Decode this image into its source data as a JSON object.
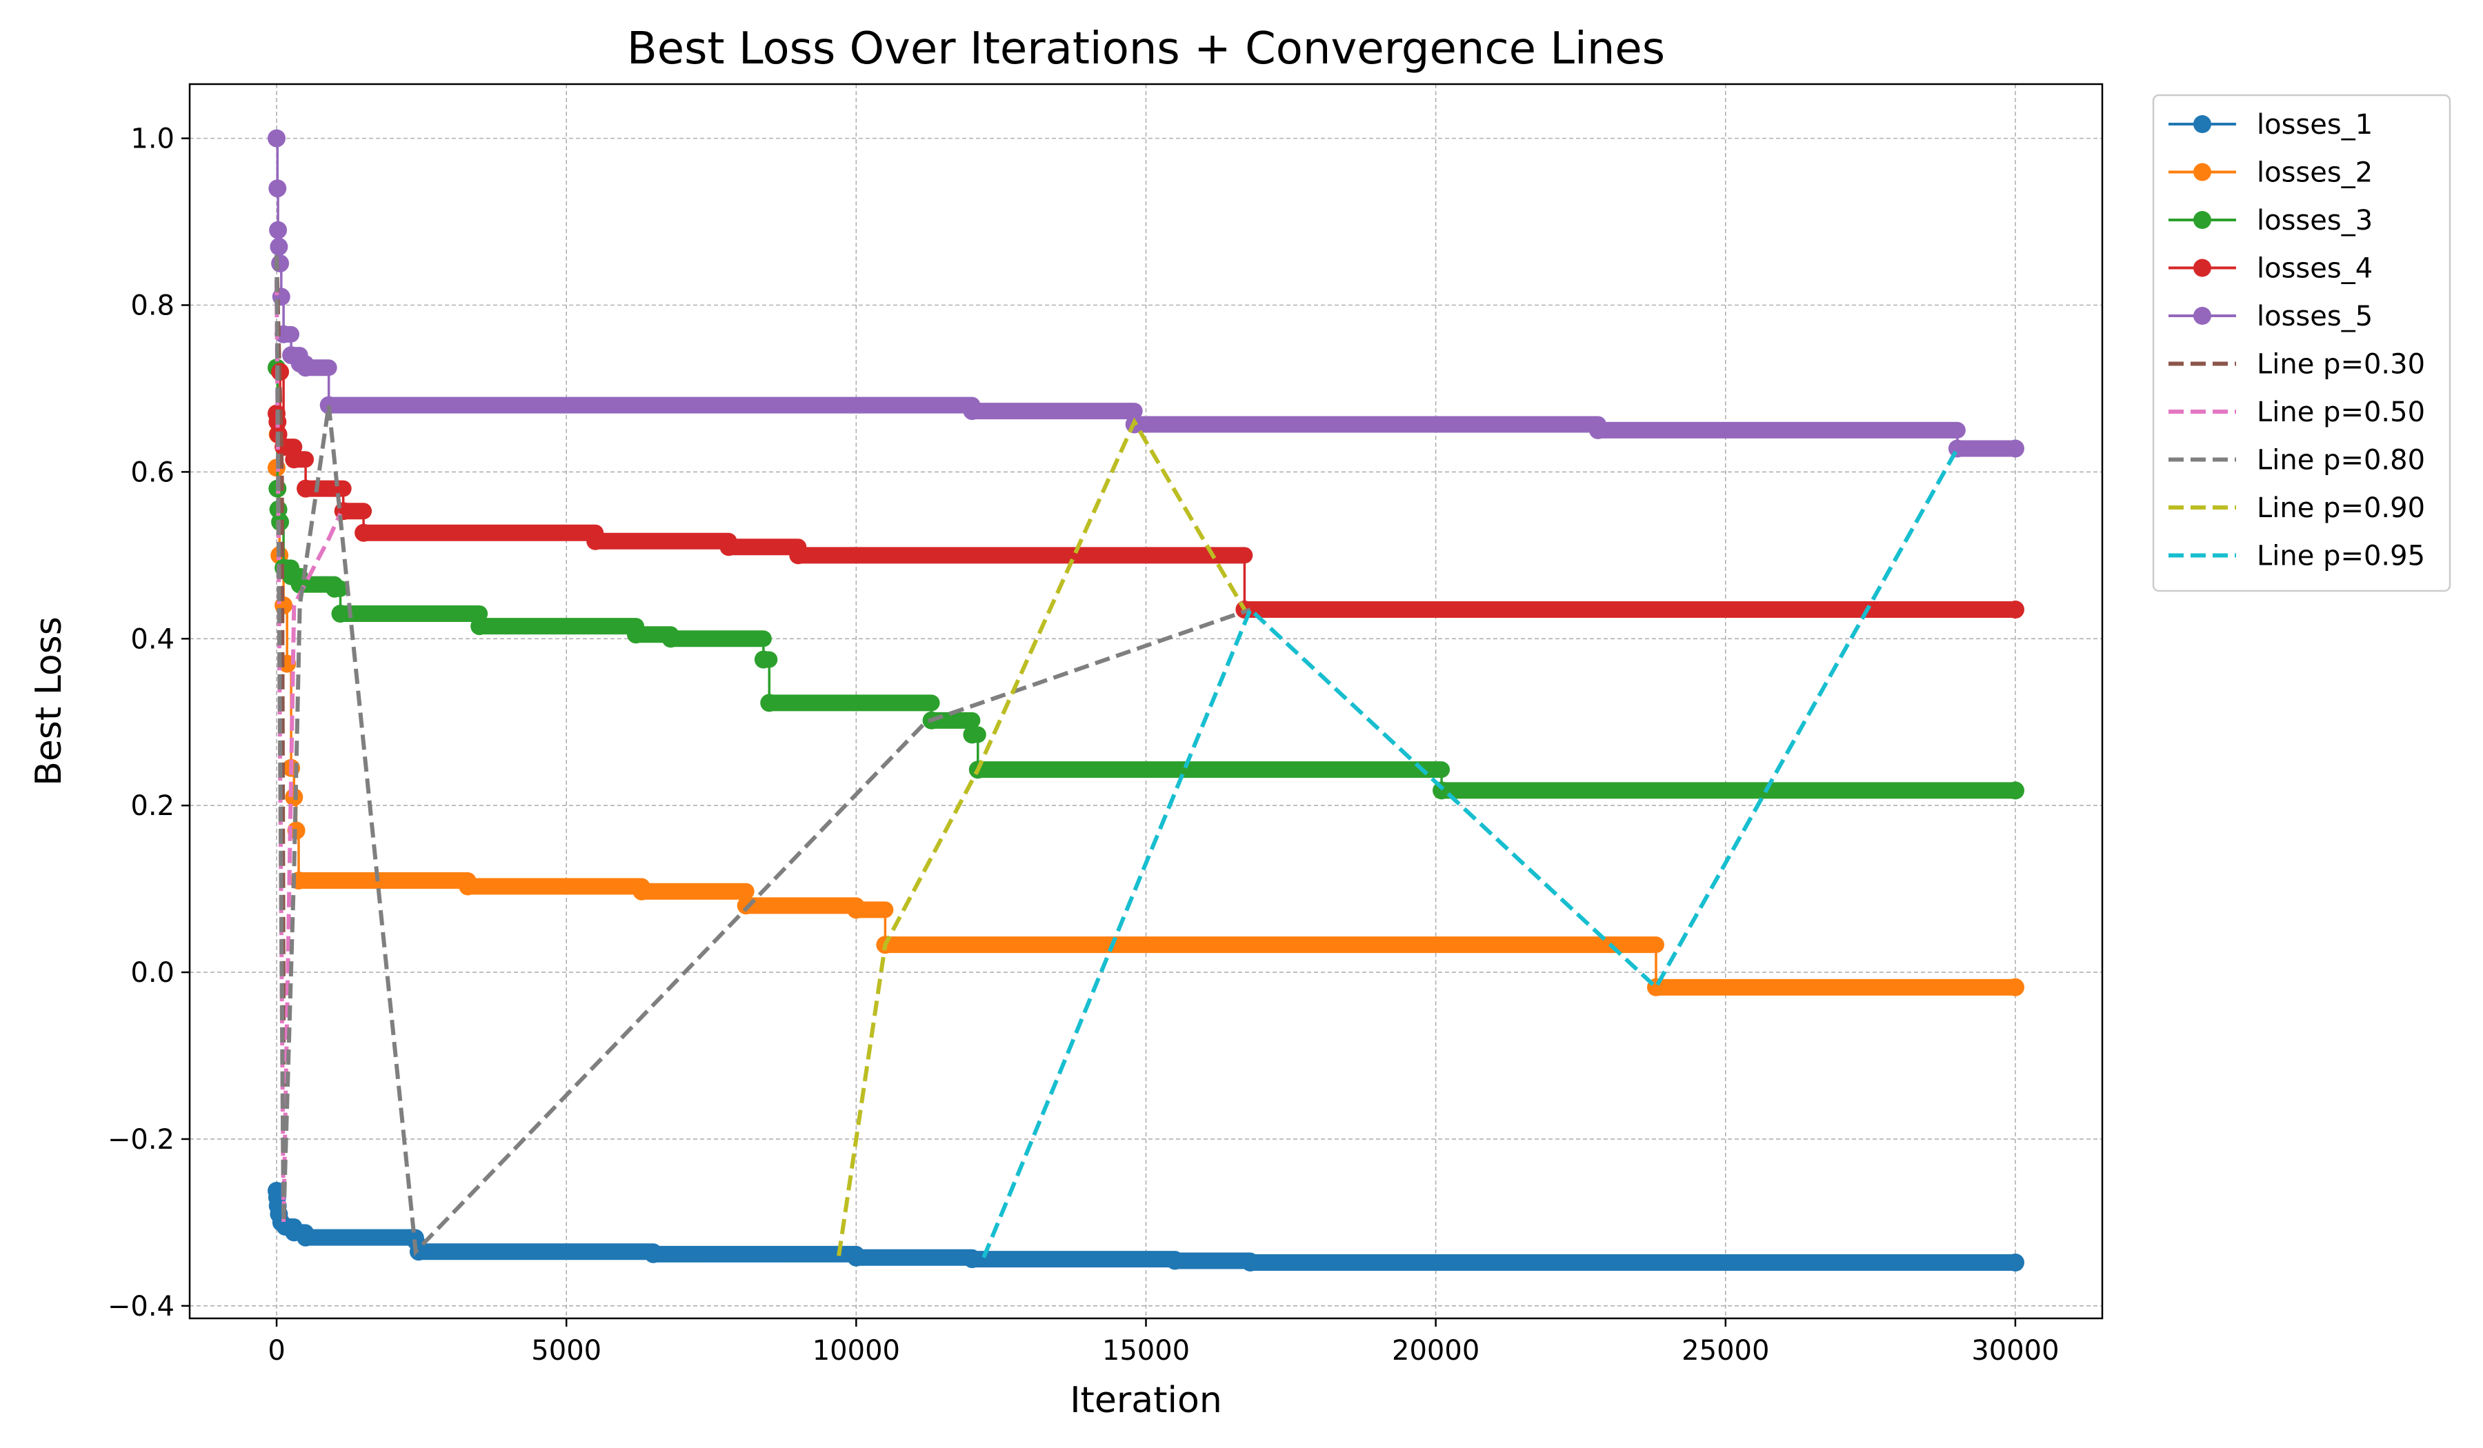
{
  "chart_data": {
    "type": "line",
    "title": "Best Loss Over Iterations + Convergence Lines",
    "xlabel": "Iteration",
    "ylabel": "Best Loss",
    "xlim": [
      -1500,
      31500
    ],
    "ylim": [
      -0.415,
      1.065
    ],
    "xticks": [
      0,
      5000,
      10000,
      15000,
      20000,
      25000,
      30000
    ],
    "xtick_labels": [
      "0",
      "5000",
      "10000",
      "15000",
      "20000",
      "25000",
      "30000"
    ],
    "yticks": [
      -0.4,
      -0.2,
      0.0,
      0.2,
      0.4,
      0.6,
      0.8,
      1.0
    ],
    "ytick_labels": [
      "−0.4",
      "−0.2",
      "0.0",
      "0.2",
      "0.4",
      "0.6",
      "0.8",
      "1.0"
    ],
    "grid": true,
    "legend_position": "outside-top-right",
    "series": [
      {
        "name": "losses_1",
        "color": "#1f77b4",
        "style": "step-marker",
        "points": [
          [
            0,
            -0.262
          ],
          [
            10,
            -0.27
          ],
          [
            20,
            -0.28
          ],
          [
            40,
            -0.29
          ],
          [
            80,
            -0.3
          ],
          [
            150,
            -0.305
          ],
          [
            300,
            -0.312
          ],
          [
            500,
            -0.318
          ],
          [
            2400,
            -0.322
          ],
          [
            2450,
            -0.335
          ],
          [
            6500,
            -0.338
          ],
          [
            10000,
            -0.342
          ],
          [
            12000,
            -0.344
          ],
          [
            15500,
            -0.346
          ],
          [
            16800,
            -0.348
          ],
          [
            30000,
            -0.348
          ]
        ]
      },
      {
        "name": "losses_2",
        "color": "#ff7f0e",
        "style": "step-marker",
        "points": [
          [
            0,
            0.605
          ],
          [
            20,
            0.645
          ],
          [
            50,
            0.5
          ],
          [
            120,
            0.44
          ],
          [
            180,
            0.37
          ],
          [
            250,
            0.245
          ],
          [
            300,
            0.21
          ],
          [
            340,
            0.17
          ],
          [
            380,
            0.11
          ],
          [
            3300,
            0.103
          ],
          [
            6300,
            0.097
          ],
          [
            8100,
            0.08
          ],
          [
            10000,
            0.075
          ],
          [
            10500,
            0.033
          ],
          [
            23800,
            -0.018
          ],
          [
            30000,
            -0.018
          ]
        ]
      },
      {
        "name": "losses_3",
        "color": "#2ca02c",
        "style": "step-marker",
        "points": [
          [
            0,
            0.725
          ],
          [
            15,
            0.58
          ],
          [
            30,
            0.555
          ],
          [
            60,
            0.54
          ],
          [
            120,
            0.485
          ],
          [
            250,
            0.475
          ],
          [
            400,
            0.465
          ],
          [
            1000,
            0.46
          ],
          [
            1100,
            0.43
          ],
          [
            3500,
            0.415
          ],
          [
            6200,
            0.405
          ],
          [
            6800,
            0.4
          ],
          [
            8400,
            0.375
          ],
          [
            8500,
            0.323
          ],
          [
            11300,
            0.302
          ],
          [
            12000,
            0.285
          ],
          [
            12100,
            0.243
          ],
          [
            20100,
            0.218
          ],
          [
            30000,
            0.218
          ]
        ]
      },
      {
        "name": "losses_4",
        "color": "#d62728",
        "style": "step-marker",
        "points": [
          [
            0,
            0.67
          ],
          [
            15,
            0.66
          ],
          [
            30,
            0.645
          ],
          [
            60,
            0.72
          ],
          [
            120,
            0.63
          ],
          [
            300,
            0.615
          ],
          [
            500,
            0.58
          ],
          [
            1150,
            0.553
          ],
          [
            1500,
            0.527
          ],
          [
            5500,
            0.517
          ],
          [
            7800,
            0.51
          ],
          [
            9000,
            0.5
          ],
          [
            16700,
            0.435
          ],
          [
            30000,
            0.435
          ]
        ]
      },
      {
        "name": "losses_5",
        "color": "#9467bd",
        "style": "step-marker",
        "points": [
          [
            0,
            1.0
          ],
          [
            15,
            0.94
          ],
          [
            25,
            0.89
          ],
          [
            40,
            0.87
          ],
          [
            60,
            0.85
          ],
          [
            80,
            0.81
          ],
          [
            120,
            0.765
          ],
          [
            250,
            0.74
          ],
          [
            400,
            0.73
          ],
          [
            500,
            0.725
          ],
          [
            900,
            0.68
          ],
          [
            12000,
            0.673
          ],
          [
            14800,
            0.657
          ],
          [
            22800,
            0.65
          ],
          [
            29000,
            0.628
          ],
          [
            30000,
            0.628
          ]
        ]
      },
      {
        "name": "Line p=0.30",
        "color": "#8c564b",
        "style": "dashed",
        "points": [
          [
            0,
            0.86
          ],
          [
            90,
            0.6
          ],
          [
            130,
            -0.3
          ]
        ]
      },
      {
        "name": "Line p=0.50",
        "color": "#e377c2",
        "style": "dashed",
        "points": [
          [
            0,
            0.83
          ],
          [
            120,
            -0.3
          ],
          [
            300,
            0.44
          ],
          [
            900,
            0.52
          ],
          [
            1100,
            0.55
          ]
        ]
      },
      {
        "name": "Line p=0.80",
        "color": "#7f7f7f",
        "style": "dashed",
        "points": [
          [
            0,
            0.86
          ],
          [
            120,
            -0.3
          ],
          [
            300,
            0.12
          ],
          [
            400,
            0.44
          ],
          [
            900,
            0.68
          ],
          [
            2400,
            -0.335
          ],
          [
            11200,
            0.3
          ],
          [
            16800,
            0.435
          ]
        ]
      },
      {
        "name": "Line p=0.90",
        "color": "#bcbd22",
        "style": "dashed",
        "points": [
          [
            9700,
            -0.34
          ],
          [
            10500,
            0.033
          ],
          [
            12100,
            0.243
          ],
          [
            14800,
            0.66
          ],
          [
            16700,
            0.435
          ]
        ]
      },
      {
        "name": "Line p=0.95",
        "color": "#17becf",
        "style": "dashed",
        "points": [
          [
            12200,
            -0.342
          ],
          [
            16800,
            0.435
          ],
          [
            23800,
            -0.018
          ],
          [
            29000,
            0.628
          ]
        ]
      }
    ]
  }
}
